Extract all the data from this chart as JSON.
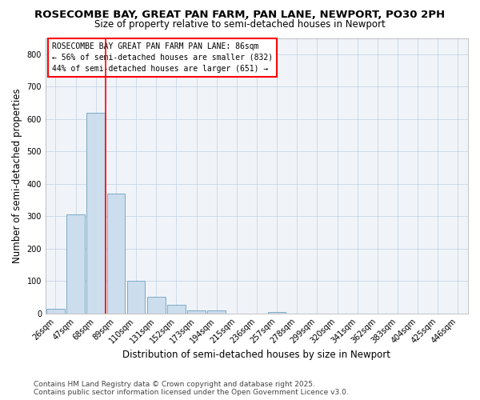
{
  "title_line1": "ROSECOMBE BAY, GREAT PAN FARM, PAN LANE, NEWPORT, PO30 2PH",
  "title_line2": "Size of property relative to semi-detached houses in Newport",
  "xlabel": "Distribution of semi-detached houses by size in Newport",
  "ylabel": "Number of semi-detached properties",
  "categories": [
    "26sqm",
    "47sqm",
    "68sqm",
    "89sqm",
    "110sqm",
    "131sqm",
    "152sqm",
    "173sqm",
    "194sqm",
    "215sqm",
    "236sqm",
    "257sqm",
    "278sqm",
    "299sqm",
    "320sqm",
    "341sqm",
    "362sqm",
    "383sqm",
    "404sqm",
    "425sqm",
    "446sqm"
  ],
  "values": [
    15,
    305,
    620,
    370,
    100,
    50,
    25,
    10,
    10,
    0,
    0,
    5,
    0,
    0,
    0,
    0,
    0,
    0,
    0,
    0,
    0
  ],
  "bar_color": "#ccdded",
  "bar_edge_color": "#7aaac8",
  "red_line_x": 3.0,
  "annotation_text": "ROSECOMBE BAY GREAT PAN FARM PAN LANE: 86sqm\n← 56% of semi-detached houses are smaller (832)\n44% of semi-detached houses are larger (651) →",
  "annotation_box_color": "#ffffff",
  "annotation_border_color": "red",
  "ylim": [
    0,
    850
  ],
  "yticks": [
    0,
    100,
    200,
    300,
    400,
    500,
    600,
    700,
    800
  ],
  "footnote1": "Contains HM Land Registry data © Crown copyright and database right 2025.",
  "footnote2": "Contains public sector information licensed under the Open Government Licence v3.0.",
  "bg_color": "#ffffff",
  "plot_bg_color": "#f0f4f8",
  "title_fontsize": 9.5,
  "subtitle_fontsize": 8.5,
  "tick_fontsize": 7,
  "label_fontsize": 8.5,
  "footnote_fontsize": 6.5
}
